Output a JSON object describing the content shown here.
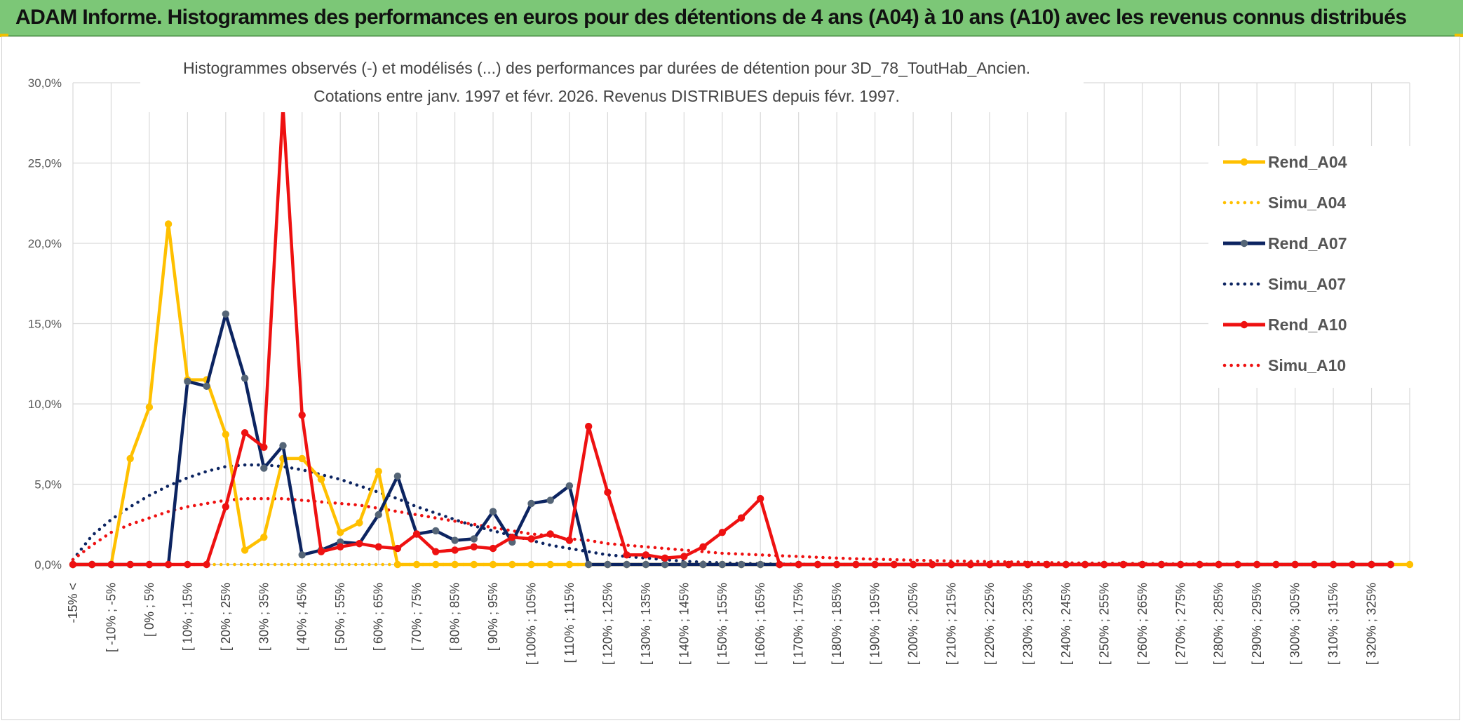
{
  "banner": {
    "title": "ADAM Informe. Histogrammes des performances en euros pour des détentions de 4 ans (A04) à 10 ans (A10) avec les revenus connus distribués",
    "background": "#7cc777"
  },
  "chart_data": {
    "type": "line",
    "title": "Histogrammes observés (-) et modélisés (...) des performances par durées de détention pour 3D_78_ToutHab_Ancien.",
    "subtitle": "Cotations entre janv. 1997 et févr. 2026. Revenus DISTRIBUES depuis févr. 1997.",
    "xlabel": "",
    "ylabel": "",
    "ylim": [
      0,
      30
    ],
    "y_ticks": [
      "0,0%",
      "5,0%",
      "10,0%",
      "15,0%",
      "20,0%",
      "25,0%",
      "30,0%"
    ],
    "grid": true,
    "legend_position": "right",
    "x_labels": [
      "-15% <",
      "[ -10% ; -5%",
      "[ 0% ; 5%",
      "[ 10% ; 15%",
      "[ 20% ; 25%",
      "[ 30% ; 35%",
      "[ 40% ; 45%",
      "[ 50% ; 55%",
      "[ 60% ; 65%",
      "[ 70% ; 75%",
      "[ 80% ; 85%",
      "[ 90% ; 95%",
      "[ 100% ; 105%",
      "[ 110% ; 115%",
      "[ 120% ; 125%",
      "[ 130% ; 135%",
      "[ 140% ; 145%",
      "[ 150% ; 155%",
      "[ 160% ; 165%",
      "[ 170% ; 175%",
      "[ 180% ; 185%",
      "[ 190% ; 195%",
      "[ 200% ; 205%",
      "[ 210% ; 215%",
      "[ 220% ; 225%",
      "[ 230% ; 235%",
      "[ 240% ; 245%",
      "[ 250% ; 255%",
      "[ 260% ; 265%",
      "[ 270% ; 275%",
      "[ 280% ; 285%",
      "[ 290% ; 295%",
      "[ 300% ; 305%",
      "[ 310% ; 315%",
      "[ 320% ; 325%"
    ],
    "series": [
      {
        "name": "Rend_A04",
        "style": "solid",
        "color": "#ffc000",
        "values": [
          0,
          0,
          0,
          6.6,
          9.8,
          21.2,
          11.5,
          11.5,
          8.1,
          0.9,
          1.7,
          6.6,
          6.6,
          5.3,
          2.0,
          2.6,
          5.8,
          0,
          0,
          0,
          0,
          0,
          0,
          0,
          0,
          0,
          0,
          0,
          0,
          0,
          0,
          0,
          0,
          0,
          0,
          0,
          0,
          0,
          0,
          0,
          0,
          0,
          0,
          0,
          0,
          0,
          0,
          0,
          0,
          0,
          0,
          0,
          0,
          0,
          0,
          0,
          0,
          0,
          0,
          0,
          0,
          0,
          0,
          0,
          0,
          0,
          0,
          0,
          0,
          0,
          0
        ]
      },
      {
        "name": "Simu_A04",
        "style": "dotted",
        "color": "#ffc000",
        "values": [
          0,
          0,
          0,
          0,
          0,
          0,
          0,
          0,
          0,
          0,
          0,
          0,
          0,
          0,
          0,
          0,
          0,
          0,
          0,
          0,
          0,
          0,
          0,
          0,
          0,
          0,
          0,
          0,
          0,
          0,
          0,
          0,
          0,
          0,
          0,
          0,
          0,
          0,
          0,
          0,
          0,
          0,
          0,
          0,
          0,
          0,
          0,
          0,
          0,
          0,
          0,
          0,
          0,
          0,
          0,
          0,
          0,
          0,
          0,
          0,
          0,
          0,
          0,
          0,
          0,
          0,
          0,
          0,
          0,
          0
        ]
      },
      {
        "name": "Rend_A07",
        "style": "solid",
        "color": "#0c2461",
        "values": [
          0,
          0,
          0,
          0,
          0,
          0,
          11.4,
          11.1,
          15.6,
          11.6,
          6.0,
          7.4,
          0.6,
          0.9,
          1.4,
          1.3,
          3.1,
          5.5,
          1.9,
          2.1,
          1.5,
          1.6,
          3.3,
          1.4,
          3.8,
          4.0,
          4.9,
          0,
          0,
          0,
          0,
          0,
          0,
          0,
          0,
          0,
          0,
          0,
          0,
          0,
          0,
          0,
          0,
          0,
          0,
          0,
          0,
          0,
          0,
          0,
          0,
          0,
          0,
          0,
          0,
          0,
          0,
          0,
          0,
          0,
          0,
          0,
          0,
          0,
          0,
          0,
          0,
          0,
          0,
          0
        ]
      },
      {
        "name": "Simu_A07",
        "style": "dotted",
        "color": "#0c2461",
        "values": [
          0.3,
          1.8,
          2.8,
          3.6,
          4.3,
          4.9,
          5.4,
          5.8,
          6.1,
          6.2,
          6.2,
          6.1,
          5.9,
          5.6,
          5.3,
          4.9,
          4.5,
          4.1,
          3.6,
          3.2,
          2.8,
          2.4,
          2.1,
          1.8,
          1.5,
          1.2,
          1.0,
          0.8,
          0.6,
          0.5,
          0.4,
          0.3,
          0.2,
          0.15,
          0.1,
          0.07,
          0.05,
          0.03,
          0.02,
          0.01,
          0,
          0,
          0,
          0,
          0,
          0,
          0,
          0,
          0,
          0,
          0,
          0,
          0,
          0,
          0,
          0,
          0,
          0,
          0,
          0,
          0,
          0,
          0,
          0,
          0,
          0,
          0,
          0,
          0,
          0
        ]
      },
      {
        "name": "Rend_A10",
        "style": "solid",
        "color": "#ee1111",
        "values": [
          0,
          0,
          0,
          0,
          0,
          0,
          0,
          0,
          3.6,
          8.2,
          7.3,
          28.5,
          9.3,
          0.8,
          1.1,
          1.3,
          1.1,
          1.0,
          1.9,
          0.8,
          0.9,
          1.1,
          1.0,
          1.7,
          1.6,
          1.9,
          1.5,
          8.6,
          4.5,
          0.6,
          0.6,
          0.4,
          0.5,
          1.1,
          2.0,
          2.9,
          4.1,
          0,
          0,
          0,
          0,
          0,
          0,
          0,
          0,
          0,
          0,
          0,
          0,
          0,
          0,
          0,
          0,
          0,
          0,
          0,
          0,
          0,
          0,
          0,
          0,
          0,
          0,
          0,
          0,
          0,
          0,
          0,
          0,
          0
        ]
      },
      {
        "name": "Simu_A10",
        "style": "dotted",
        "color": "#ee1111",
        "values": [
          0.3,
          1.2,
          2.0,
          2.5,
          2.9,
          3.3,
          3.6,
          3.8,
          4.0,
          4.1,
          4.1,
          4.1,
          4.0,
          3.9,
          3.8,
          3.7,
          3.5,
          3.3,
          3.1,
          2.9,
          2.7,
          2.5,
          2.3,
          2.1,
          1.9,
          1.8,
          1.6,
          1.5,
          1.3,
          1.2,
          1.1,
          1.0,
          0.9,
          0.8,
          0.7,
          0.65,
          0.6,
          0.55,
          0.5,
          0.45,
          0.4,
          0.36,
          0.33,
          0.3,
          0.27,
          0.24,
          0.22,
          0.2,
          0.18,
          0.16,
          0.14,
          0.12,
          0.1,
          0.09,
          0.08,
          0.07,
          0.06,
          0.05,
          0.04,
          0.03,
          0.02,
          0.02,
          0.01,
          0.01,
          0,
          0,
          0,
          0,
          0,
          0
        ]
      }
    ]
  }
}
